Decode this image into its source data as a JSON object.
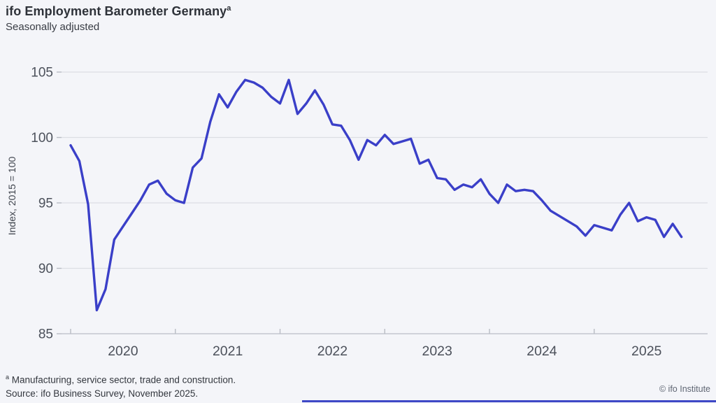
{
  "header": {
    "title": "ifo Employment Barometer Germany",
    "title_superscript": "a",
    "subtitle": "Seasonally adjusted"
  },
  "chart_data": {
    "type": "line",
    "title": "ifo Employment Barometer Germany",
    "subtitle": "Seasonally adjusted",
    "ylabel": "Index, 2015 = 100",
    "xlabel": "",
    "ylim": [
      85,
      105
    ],
    "yticks": [
      85,
      90,
      95,
      100,
      105
    ],
    "grid": true,
    "legend_position": "none",
    "frequency": "monthly",
    "x_start": "2020-01",
    "x_end": "2025-11",
    "xticks_years": [
      "2020",
      "2021",
      "2022",
      "2023",
      "2024",
      "2025"
    ],
    "line_color": "#3a3fc8",
    "series": [
      {
        "name": "ifo Employment Barometer (seasonally adjusted)",
        "values": [
          99.4,
          98.2,
          94.9,
          86.8,
          88.4,
          92.2,
          93.2,
          94.2,
          95.2,
          96.4,
          96.7,
          95.7,
          95.2,
          95.0,
          97.7,
          98.4,
          101.2,
          103.3,
          102.3,
          103.5,
          104.4,
          104.2,
          103.8,
          103.1,
          102.6,
          104.4,
          101.8,
          102.6,
          103.6,
          102.5,
          101.0,
          100.9,
          99.8,
          98.3,
          99.8,
          99.4,
          100.2,
          99.5,
          99.7,
          99.9,
          98.0,
          98.3,
          96.9,
          96.8,
          96.0,
          96.4,
          96.2,
          96.8,
          95.7,
          95.0,
          96.4,
          95.9,
          96.0,
          95.9,
          95.2,
          94.4,
          94.0,
          93.6,
          93.2,
          92.5,
          93.3,
          93.1,
          92.9,
          94.1,
          95.0,
          93.6,
          93.9,
          93.7,
          92.4,
          93.4,
          92.4
        ]
      }
    ]
  },
  "footnotes": {
    "note_marker": "a",
    "note_text": " Manufacturing, service sector, trade and construction.",
    "source": "Source: ifo Business Survey, November 2025.",
    "copyright": "© ifo Institute"
  }
}
